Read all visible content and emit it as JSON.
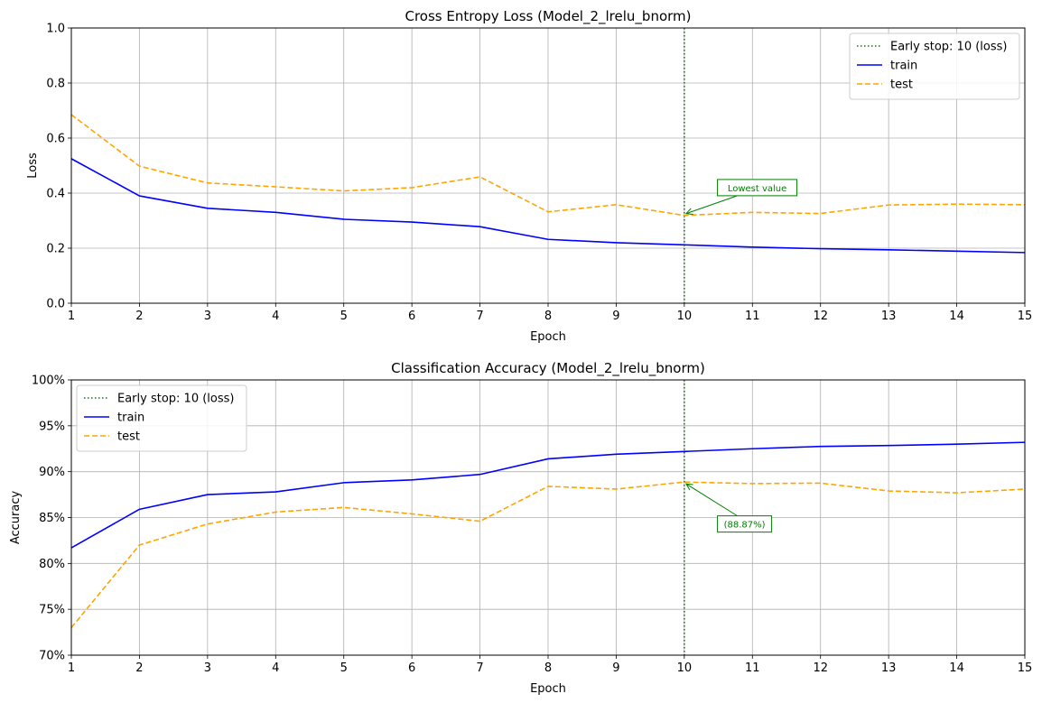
{
  "chart_data": [
    {
      "type": "line",
      "title": "Cross Entropy Loss (Model_2_lrelu_bnorm)",
      "xlabel": "Epoch",
      "ylabel": "Loss",
      "x": [
        1,
        2,
        3,
        4,
        5,
        6,
        7,
        8,
        9,
        10,
        11,
        12,
        13,
        14,
        15
      ],
      "xlim": [
        1,
        15
      ],
      "ylim": [
        0,
        1
      ],
      "xticks": [
        1,
        2,
        3,
        4,
        5,
        6,
        7,
        8,
        9,
        10,
        11,
        12,
        13,
        14,
        15
      ],
      "yticks": [
        0.0,
        0.2,
        0.4,
        0.6,
        0.8,
        1.0
      ],
      "ytick_labels": [
        "0.0",
        "0.2",
        "0.4",
        "0.6",
        "0.8",
        "1.0"
      ],
      "grid": true,
      "legend_position": "top-right",
      "early_stop": {
        "x": 10,
        "label": "Early stop: 10 (loss)",
        "color": "#008000"
      },
      "series": [
        {
          "name": "train",
          "color": "#0000ff",
          "dash": "solid",
          "values": [
            0.525,
            0.39,
            0.345,
            0.33,
            0.305,
            0.295,
            0.278,
            0.232,
            0.22,
            0.212,
            0.204,
            0.198,
            0.194,
            0.189,
            0.184
          ]
        },
        {
          "name": "test",
          "color": "#ffa500",
          "dash": "dashed",
          "values": [
            0.685,
            0.498,
            0.437,
            0.423,
            0.408,
            0.42,
            0.459,
            0.332,
            0.358,
            0.319,
            0.33,
            0.326,
            0.357,
            0.36,
            0.358
          ]
        }
      ],
      "annotation": {
        "text": "Lowest value",
        "x": 10,
        "y": 0.319,
        "text_x": 10.5,
        "text_y": 0.42
      }
    },
    {
      "type": "line",
      "title": "Classification Accuracy (Model_2_lrelu_bnorm)",
      "xlabel": "Epoch",
      "ylabel": "Accuracy",
      "x": [
        1,
        2,
        3,
        4,
        5,
        6,
        7,
        8,
        9,
        10,
        11,
        12,
        13,
        14,
        15
      ],
      "xlim": [
        1,
        15
      ],
      "ylim": [
        0.7,
        1.0
      ],
      "xticks": [
        1,
        2,
        3,
        4,
        5,
        6,
        7,
        8,
        9,
        10,
        11,
        12,
        13,
        14,
        15
      ],
      "yticks": [
        0.7,
        0.75,
        0.8,
        0.85,
        0.9,
        0.95,
        1.0
      ],
      "ytick_labels": [
        "70%",
        "75%",
        "80%",
        "85%",
        "90%",
        "95%",
        "100%"
      ],
      "grid": true,
      "legend_position": "top-left",
      "early_stop": {
        "x": 10,
        "label": "Early stop: 10 (loss)",
        "color": "#008000"
      },
      "series": [
        {
          "name": "train",
          "color": "#0000ff",
          "dash": "solid",
          "values": [
            0.817,
            0.859,
            0.875,
            0.878,
            0.888,
            0.891,
            0.897,
            0.914,
            0.919,
            0.922,
            0.925,
            0.9275,
            0.9285,
            0.93,
            0.932
          ]
        },
        {
          "name": "test",
          "color": "#ffa500",
          "dash": "dashed",
          "values": [
            0.73,
            0.82,
            0.843,
            0.856,
            0.861,
            0.854,
            0.846,
            0.884,
            0.881,
            0.8887,
            0.887,
            0.8875,
            0.879,
            0.877,
            0.881
          ]
        }
      ],
      "annotation": {
        "text": "(88.87%)",
        "x": 10,
        "y": 0.8887,
        "text_x": 10.5,
        "text_y": 0.843
      }
    }
  ]
}
